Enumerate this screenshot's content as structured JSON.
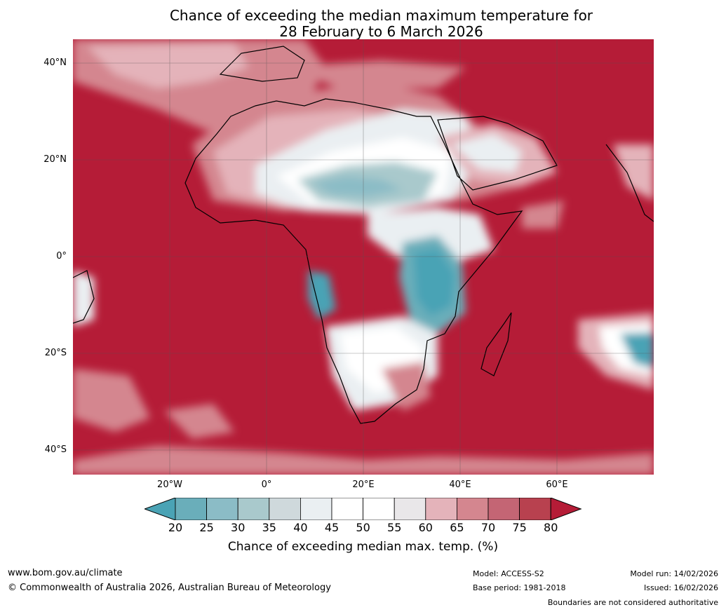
{
  "title_line1": "Chance of exceeding the median maximum temperature for",
  "title_line2": "28 February to 6 March 2026",
  "lat_labels": [
    "40°N",
    "20°N",
    "0°",
    "20°S",
    "40°S"
  ],
  "lon_labels": [
    "20°W",
    "0°",
    "20°E",
    "40°E",
    "60°E"
  ],
  "colorbar": {
    "ticks": [
      "20",
      "25",
      "30",
      "35",
      "40",
      "45",
      "50",
      "55",
      "60",
      "65",
      "70",
      "75",
      "80"
    ],
    "colors": [
      "#4aa3b5",
      "#6aaeba",
      "#8bbcc6",
      "#a9c9cc",
      "#cfd9dc",
      "#eaeff2",
      "#ffffff",
      "#ffffff",
      "#e9e7e9",
      "#e4b3ba",
      "#d4868f",
      "#c46574",
      "#b8414f",
      "#b51c37"
    ],
    "label": "Chance of exceeding median max. temp. (%)"
  },
  "footer": {
    "website": "www.bom.gov.au/climate",
    "copyright": "© Commonwealth of Australia 2026, Australian Bureau of Meteorology",
    "model": "Model: ACCESS-S2",
    "base_period": "Base period: 1981-2018",
    "model_run": "Model run: 14/02/2026",
    "issued": "Issued: 16/02/2026",
    "disclaimer": "Boundaries are not considered authoritative"
  }
}
